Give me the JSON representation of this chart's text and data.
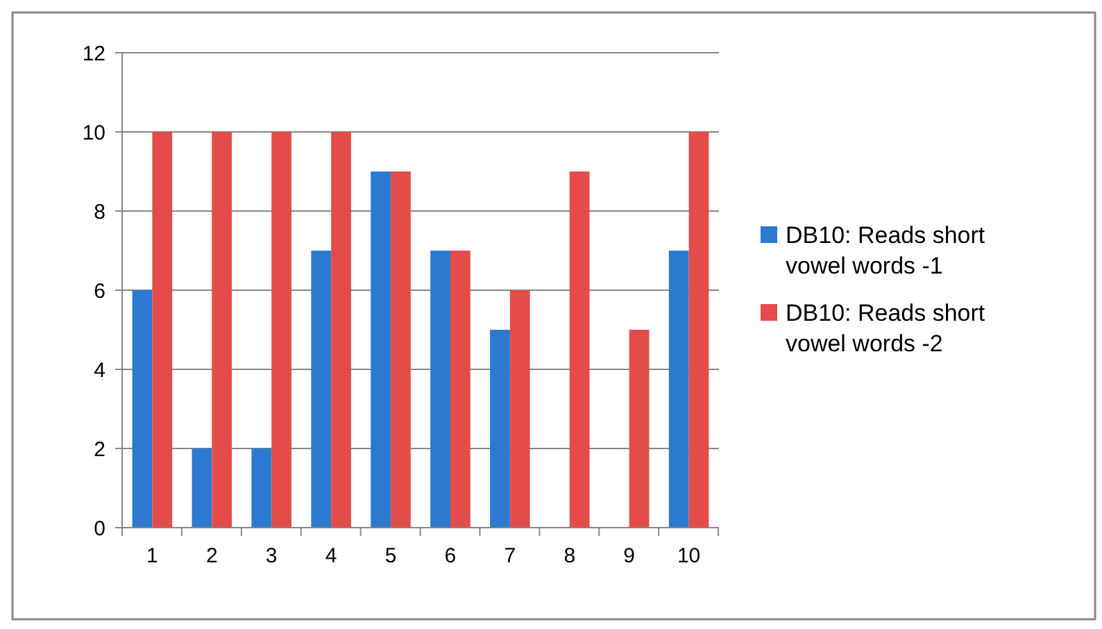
{
  "chart_data": {
    "type": "bar",
    "categories": [
      "1",
      "2",
      "3",
      "4",
      "5",
      "6",
      "7",
      "8",
      "9",
      "10"
    ],
    "series": [
      {
        "name": "DB10: Reads short vowel words -1",
        "color": "#2b7ad0",
        "values": [
          6,
          2,
          2,
          7,
          9,
          7,
          5,
          0,
          0,
          7
        ]
      },
      {
        "name": "DB10: Reads short vowel words -2",
        "color": "#e34c4a",
        "values": [
          10,
          10,
          10,
          10,
          9,
          7,
          6,
          9,
          5,
          10
        ]
      }
    ],
    "ylim": [
      0,
      12
    ],
    "yticks": [
      0,
      2,
      4,
      6,
      8,
      10,
      12
    ],
    "grid": "y",
    "legend": "right"
  }
}
